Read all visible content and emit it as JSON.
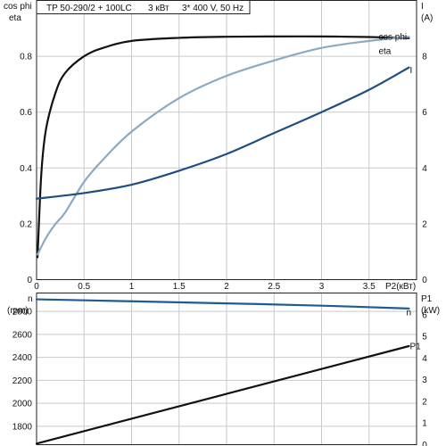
{
  "title_box": {
    "model": "TP 50-290/2 + 100LC",
    "power": "3 кВт",
    "supply": "3* 400 V, 50 Hz"
  },
  "colors": {
    "eta": "#111111",
    "cos_phi": "#8ca9c4",
    "current": "#1f4f82",
    "n": "#1f5a94",
    "p1": "#111111",
    "grid": "#c9c9c9"
  },
  "chart_data": [
    {
      "type": "line",
      "panel": "upper",
      "x_label": "P2(кВт)",
      "xlim": [
        0,
        4
      ],
      "x_ticks": [
        0,
        0.5,
        1,
        1.5,
        2,
        2.5,
        3,
        3.5
      ],
      "y_left_label_top": "cos phi",
      "y_left_label_bottom": "eta",
      "ylim_left": [
        0,
        1
      ],
      "y_left_ticks": [
        0,
        0.2,
        0.4,
        0.6,
        0.8
      ],
      "y_right_label_top": "I",
      "y_right_label_bottom": "(A)",
      "ylim_right": [
        0,
        10
      ],
      "y_right_ticks": [
        0,
        2,
        4,
        6,
        8
      ],
      "grid": true,
      "series": [
        {
          "name": "eta",
          "axis": "left",
          "x": [
            0.01,
            0.05,
            0.1,
            0.2,
            0.3,
            0.5,
            0.7,
            1.0,
            1.5,
            2.0,
            2.5,
            3.0,
            3.5,
            3.92
          ],
          "y": [
            0.08,
            0.38,
            0.54,
            0.67,
            0.74,
            0.8,
            0.83,
            0.855,
            0.866,
            0.87,
            0.871,
            0.871,
            0.869,
            0.865
          ]
        },
        {
          "name": "cos phi",
          "axis": "left",
          "x": [
            0.01,
            0.1,
            0.2,
            0.3,
            0.5,
            0.7,
            1.0,
            1.5,
            2.0,
            2.5,
            3.0,
            3.5,
            3.92
          ],
          "y": [
            0.09,
            0.15,
            0.2,
            0.24,
            0.35,
            0.43,
            0.53,
            0.65,
            0.73,
            0.785,
            0.83,
            0.855,
            0.87
          ]
        },
        {
          "name": "I",
          "axis": "right",
          "x": [
            0.0,
            0.5,
            1.0,
            1.5,
            2.0,
            2.5,
            3.0,
            3.5,
            3.92
          ],
          "y": [
            2.9,
            3.1,
            3.4,
            3.9,
            4.5,
            5.25,
            6.0,
            6.8,
            7.6
          ]
        }
      ]
    },
    {
      "type": "line",
      "panel": "lower",
      "xlim": [
        0,
        4
      ],
      "y_left_label_top": "n",
      "y_left_label_bottom": "(rpm)",
      "ylim_left": [
        1640,
        2960
      ],
      "y_left_ticks": [
        1800,
        2000,
        2200,
        2400,
        2600,
        2800
      ],
      "y_right_label_top": "P1",
      "y_right_label_bottom": "(kW)",
      "ylim_right": [
        0,
        7
      ],
      "y_right_ticks": [
        0,
        1,
        2,
        3,
        4,
        5,
        6
      ],
      "grid": true,
      "series": [
        {
          "name": "n",
          "axis": "left",
          "x": [
            0.0,
            1.0,
            2.0,
            3.0,
            3.92
          ],
          "y": [
            2905,
            2888,
            2870,
            2850,
            2825
          ]
        },
        {
          "name": "P1",
          "axis": "right",
          "x": [
            0.0,
            3.92
          ],
          "y": [
            0.05,
            4.55
          ]
        }
      ]
    }
  ]
}
